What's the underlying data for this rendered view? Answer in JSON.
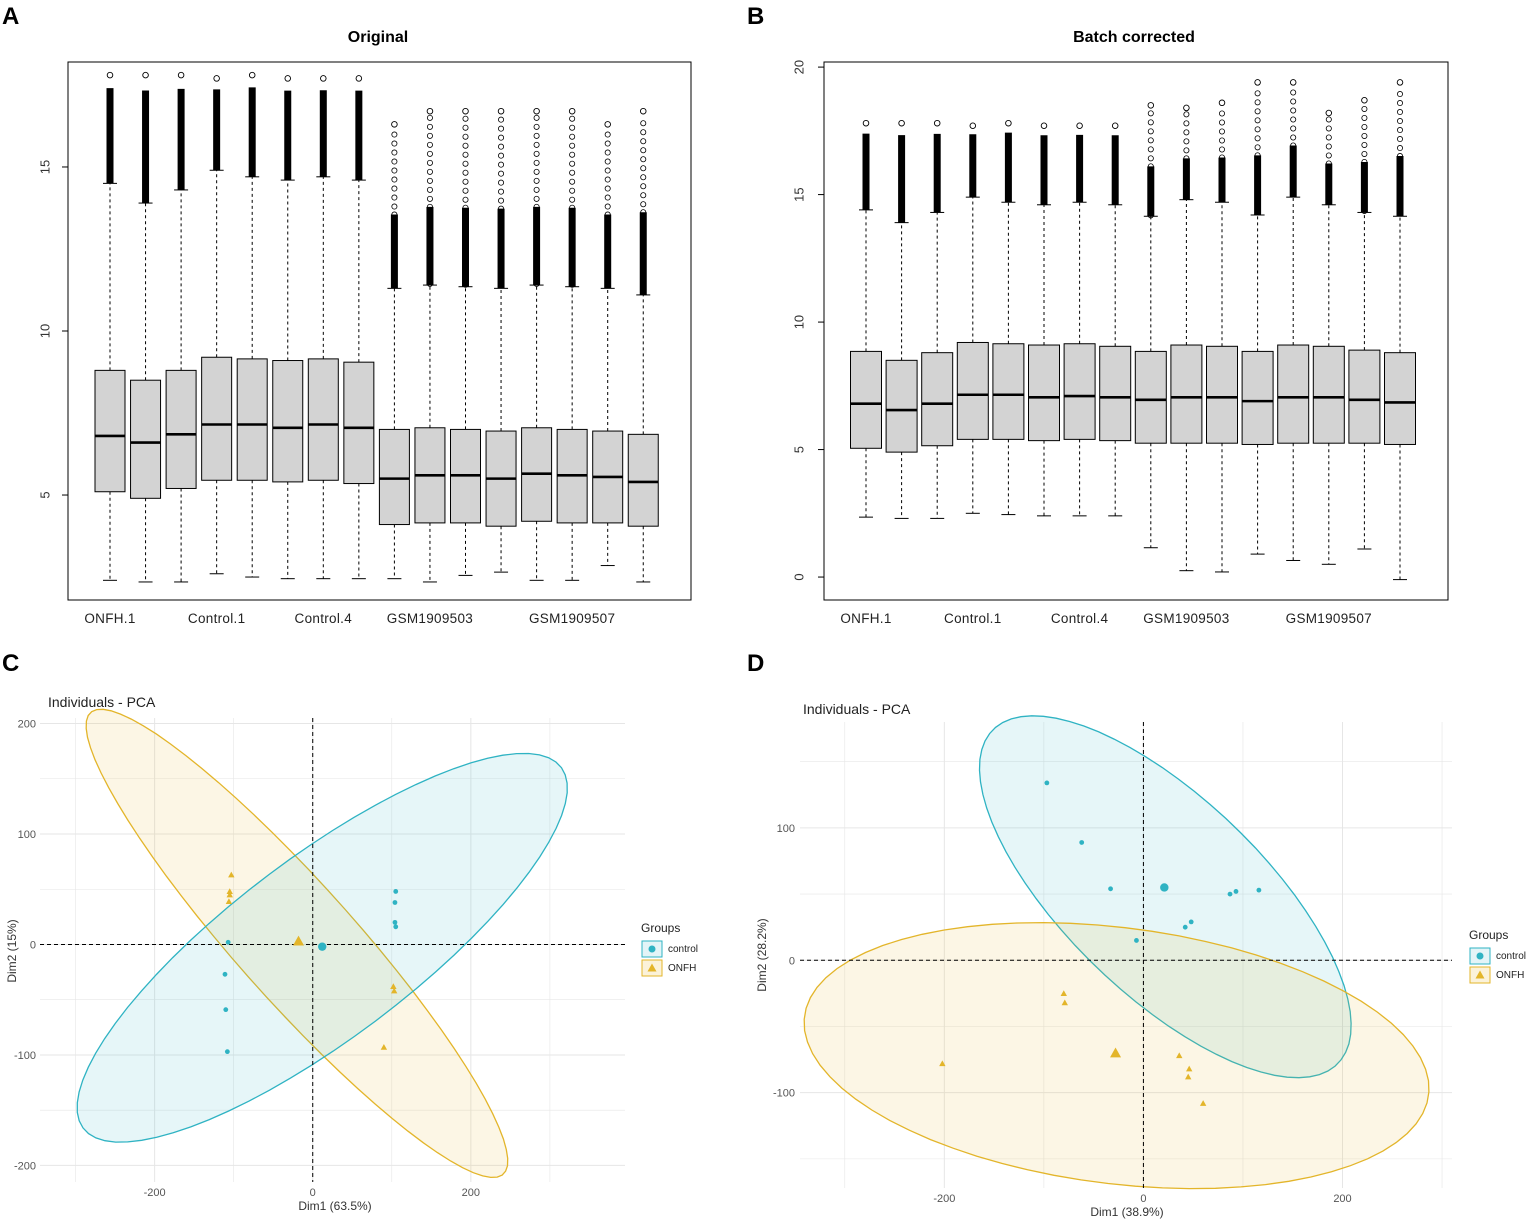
{
  "colors": {
    "control": "#2FB3C3",
    "onfh": "#E3B52A",
    "box_fill": "#D3D3D3",
    "grid": "#E6E6E6"
  },
  "panels": {
    "A": "A",
    "B": "B",
    "C": "C",
    "D": "D"
  },
  "chart_data": [
    {
      "id": "A",
      "type": "boxplot",
      "title": "Original",
      "ylim": [
        1.8,
        18.2
      ],
      "yticks": [
        "5",
        "10",
        "15"
      ],
      "x_labels": [
        "ONFH.1",
        "Control.1",
        "Control.4",
        "GSM1909503",
        "GSM1909507"
      ],
      "x_label_positions": [
        1,
        4,
        7,
        10,
        14
      ],
      "boxes": [
        {
          "q1": 5.1,
          "median": 6.8,
          "q3": 8.8,
          "lower": 2.4,
          "upper": 14.5,
          "max": 17.8,
          "many_outliers": false
        },
        {
          "q1": 4.9,
          "median": 6.6,
          "q3": 8.5,
          "lower": 2.35,
          "upper": 13.9,
          "max": 17.8,
          "many_outliers": false
        },
        {
          "q1": 5.2,
          "median": 6.85,
          "q3": 8.8,
          "lower": 2.35,
          "upper": 14.3,
          "max": 17.8,
          "many_outliers": false
        },
        {
          "q1": 5.45,
          "median": 7.15,
          "q3": 9.2,
          "lower": 2.6,
          "upper": 14.9,
          "max": 17.7,
          "many_outliers": false
        },
        {
          "q1": 5.45,
          "median": 7.15,
          "q3": 9.15,
          "lower": 2.5,
          "upper": 14.7,
          "max": 17.8,
          "many_outliers": false
        },
        {
          "q1": 5.4,
          "median": 7.05,
          "q3": 9.1,
          "lower": 2.45,
          "upper": 14.6,
          "max": 17.7,
          "many_outliers": false
        },
        {
          "q1": 5.45,
          "median": 7.15,
          "q3": 9.15,
          "lower": 2.45,
          "upper": 14.7,
          "max": 17.7,
          "many_outliers": false
        },
        {
          "q1": 5.35,
          "median": 7.05,
          "q3": 9.05,
          "lower": 2.45,
          "upper": 14.6,
          "max": 17.7,
          "many_outliers": false
        },
        {
          "q1": 4.1,
          "median": 5.5,
          "q3": 7.0,
          "lower": 2.45,
          "upper": 11.3,
          "max": 16.3,
          "many_outliers": true
        },
        {
          "q1": 4.15,
          "median": 5.6,
          "q3": 7.05,
          "lower": 2.35,
          "upper": 11.4,
          "max": 16.7,
          "many_outliers": true
        },
        {
          "q1": 4.15,
          "median": 5.6,
          "q3": 7.0,
          "lower": 2.55,
          "upper": 11.35,
          "max": 16.7,
          "many_outliers": true
        },
        {
          "q1": 4.05,
          "median": 5.5,
          "q3": 6.95,
          "lower": 2.65,
          "upper": 11.3,
          "max": 16.7,
          "many_outliers": true
        },
        {
          "q1": 4.2,
          "median": 5.65,
          "q3": 7.05,
          "lower": 2.4,
          "upper": 11.4,
          "max": 16.7,
          "many_outliers": true
        },
        {
          "q1": 4.15,
          "median": 5.6,
          "q3": 7.0,
          "lower": 2.4,
          "upper": 11.35,
          "max": 16.7,
          "many_outliers": true
        },
        {
          "q1": 4.15,
          "median": 5.55,
          "q3": 6.95,
          "lower": 2.85,
          "upper": 11.3,
          "max": 16.3,
          "many_outliers": true
        },
        {
          "q1": 4.05,
          "median": 5.4,
          "q3": 6.85,
          "lower": 2.35,
          "upper": 11.1,
          "max": 16.7,
          "many_outliers": true
        }
      ]
    },
    {
      "id": "B",
      "type": "boxplot",
      "title": "Batch corrected",
      "ylim": [
        -0.9,
        20.2
      ],
      "yticks": [
        "0",
        "5",
        "10",
        "15",
        "20"
      ],
      "x_labels": [
        "ONFH.1",
        "Control.1",
        "Control.4",
        "GSM1909503",
        "GSM1909507"
      ],
      "x_label_positions": [
        1,
        4,
        7,
        10,
        14
      ],
      "boxes": [
        {
          "q1": 5.05,
          "median": 6.8,
          "q3": 8.85,
          "lower": 2.35,
          "upper": 14.4,
          "max": 17.8,
          "many_outliers": false
        },
        {
          "q1": 4.9,
          "median": 6.55,
          "q3": 8.5,
          "lower": 2.3,
          "upper": 13.9,
          "max": 17.8,
          "many_outliers": false
        },
        {
          "q1": 5.15,
          "median": 6.8,
          "q3": 8.8,
          "lower": 2.3,
          "upper": 14.3,
          "max": 17.8,
          "many_outliers": false
        },
        {
          "q1": 5.4,
          "median": 7.15,
          "q3": 9.2,
          "lower": 2.5,
          "upper": 14.9,
          "max": 17.7,
          "many_outliers": false
        },
        {
          "q1": 5.4,
          "median": 7.15,
          "q3": 9.15,
          "lower": 2.45,
          "upper": 14.7,
          "max": 17.8,
          "many_outliers": false
        },
        {
          "q1": 5.35,
          "median": 7.05,
          "q3": 9.1,
          "lower": 2.4,
          "upper": 14.6,
          "max": 17.7,
          "many_outliers": false
        },
        {
          "q1": 5.4,
          "median": 7.1,
          "q3": 9.15,
          "lower": 2.4,
          "upper": 14.7,
          "max": 17.7,
          "many_outliers": false
        },
        {
          "q1": 5.35,
          "median": 7.05,
          "q3": 9.05,
          "lower": 2.4,
          "upper": 14.6,
          "max": 17.7,
          "many_outliers": false
        },
        {
          "q1": 5.25,
          "median": 6.95,
          "q3": 8.85,
          "lower": 1.15,
          "upper": 14.15,
          "max": 18.5,
          "many_outliers": true
        },
        {
          "q1": 5.25,
          "median": 7.05,
          "q3": 9.1,
          "lower": 0.25,
          "upper": 14.8,
          "max": 18.4,
          "many_outliers": true
        },
        {
          "q1": 5.25,
          "median": 7.05,
          "q3": 9.05,
          "lower": 0.2,
          "upper": 14.7,
          "max": 18.6,
          "many_outliers": true
        },
        {
          "q1": 5.2,
          "median": 6.9,
          "q3": 8.85,
          "lower": 0.9,
          "upper": 14.2,
          "max": 19.4,
          "many_outliers": true
        },
        {
          "q1": 5.25,
          "median": 7.05,
          "q3": 9.1,
          "lower": 0.65,
          "upper": 14.9,
          "max": 19.4,
          "many_outliers": true
        },
        {
          "q1": 5.25,
          "median": 7.05,
          "q3": 9.05,
          "lower": 0.5,
          "upper": 14.6,
          "max": 18.2,
          "many_outliers": true
        },
        {
          "q1": 5.25,
          "median": 6.95,
          "q3": 8.9,
          "lower": 1.1,
          "upper": 14.3,
          "max": 18.7,
          "many_outliers": true
        },
        {
          "q1": 5.2,
          "median": 6.85,
          "q3": 8.8,
          "lower": -0.1,
          "upper": 14.15,
          "max": 19.4,
          "many_outliers": true
        }
      ]
    },
    {
      "id": "C",
      "type": "scatter",
      "title": "Individuals - PCA",
      "xlabel": "Dim1 (63.5%)",
      "ylabel": "Dim2 (15%)",
      "xlim": [
        -345,
        395
      ],
      "ylim": [
        -215,
        205
      ],
      "xticks": [
        -200,
        0,
        200
      ],
      "yticks": [
        -200,
        -100,
        0,
        100,
        200
      ],
      "xtick_labels": [
        "-200",
        "0",
        "200"
      ],
      "ytick_labels": [
        "-200",
        "-100",
        "0",
        "100",
        "200"
      ],
      "legend_title": "Groups",
      "legend_labels": [
        "control",
        "ONFH"
      ],
      "ellipses": [
        {
          "group": "onfh",
          "cx": -20,
          "cy": 1,
          "rx": 335,
          "ry": 62,
          "angle_deg": -38
        },
        {
          "group": "control",
          "cx": 12,
          "cy": -3,
          "rx": 345,
          "ry": 90,
          "angle_deg": 27
        }
      ],
      "points": [
        {
          "group": "control",
          "x": 105,
          "y": 48
        },
        {
          "group": "control",
          "x": 104,
          "y": 38
        },
        {
          "group": "control",
          "x": 104,
          "y": 20
        },
        {
          "group": "control",
          "x": 105,
          "y": 16
        },
        {
          "group": "control",
          "x": -107,
          "y": 2
        },
        {
          "group": "control",
          "x": -111,
          "y": -27
        },
        {
          "group": "control",
          "x": -110,
          "y": -59
        },
        {
          "group": "control",
          "x": -108,
          "y": -97
        },
        {
          "group": "onfh",
          "x": -103,
          "y": 63
        },
        {
          "group": "onfh",
          "x": -105,
          "y": 48
        },
        {
          "group": "onfh",
          "x": -105,
          "y": 45
        },
        {
          "group": "onfh",
          "x": -106,
          "y": 39
        },
        {
          "group": "onfh",
          "x": 102,
          "y": -38
        },
        {
          "group": "onfh",
          "x": 103,
          "y": -42
        },
        {
          "group": "onfh",
          "x": 90,
          "y": -93
        }
      ],
      "centroids": [
        {
          "group": "control",
          "x": 12,
          "y": -2
        },
        {
          "group": "onfh",
          "x": -18,
          "y": 3
        }
      ]
    },
    {
      "id": "D",
      "type": "scatter",
      "title": "Individuals - PCA",
      "xlabel": "Dim1 (38.9%)",
      "ylabel": "Dim2 (28.2%)",
      "xlim": [
        -345,
        310
      ],
      "ylim": [
        -172,
        180
      ],
      "xticks": [
        -200,
        0,
        200
      ],
      "yticks": [
        -100,
        0,
        100
      ],
      "xtick_labels": [
        "-200",
        "0",
        "200"
      ],
      "ytick_labels": [
        "-100",
        "0",
        "100"
      ],
      "legend_title": "Groups",
      "legend_labels": [
        "control",
        "ONFH"
      ],
      "ellipses": [
        {
          "group": "control",
          "cx": 22,
          "cy": 48,
          "rx": 216,
          "ry": 83,
          "angle_deg": -33
        },
        {
          "group": "onfh",
          "cx": -27,
          "cy": -72,
          "rx": 315,
          "ry": 97,
          "angle_deg": -5
        }
      ],
      "points": [
        {
          "group": "control",
          "x": -97,
          "y": 134
        },
        {
          "group": "control",
          "x": -62,
          "y": 89
        },
        {
          "group": "control",
          "x": -33,
          "y": 54
        },
        {
          "group": "control",
          "x": 87,
          "y": 50
        },
        {
          "group": "control",
          "x": 93,
          "y": 52
        },
        {
          "group": "control",
          "x": 116,
          "y": 53
        },
        {
          "group": "control",
          "x": 42,
          "y": 25
        },
        {
          "group": "control",
          "x": 48,
          "y": 29
        },
        {
          "group": "control",
          "x": -7,
          "y": 15
        },
        {
          "group": "onfh",
          "x": -80,
          "y": -25
        },
        {
          "group": "onfh",
          "x": -79,
          "y": -32
        },
        {
          "group": "onfh",
          "x": -202,
          "y": -78
        },
        {
          "group": "onfh",
          "x": 36,
          "y": -72
        },
        {
          "group": "onfh",
          "x": 46,
          "y": -82
        },
        {
          "group": "onfh",
          "x": 45,
          "y": -88
        },
        {
          "group": "onfh",
          "x": 60,
          "y": -108
        }
      ],
      "centroids": [
        {
          "group": "control",
          "x": 21,
          "y": 55
        },
        {
          "group": "onfh",
          "x": -28,
          "y": -70
        }
      ]
    }
  ]
}
